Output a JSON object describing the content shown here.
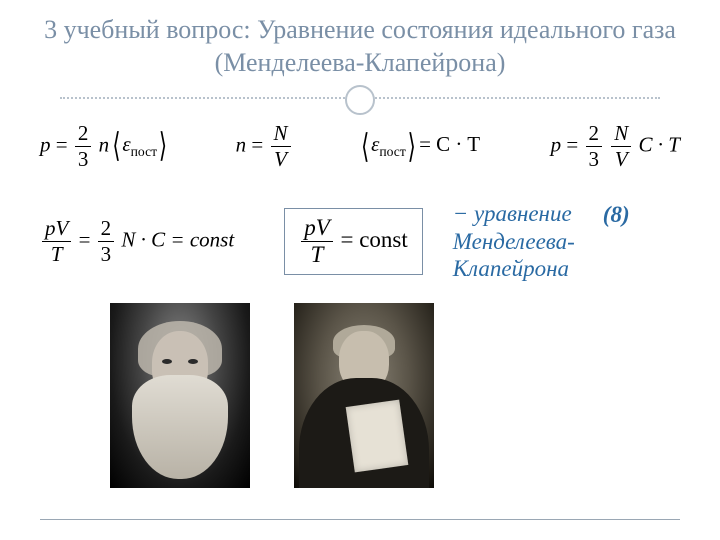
{
  "title": "3 учебный вопрос: Уравнение состояния идеального газа (Менделеева-Клапейрона)",
  "row1": {
    "eq1_lhs": "p",
    "eq1_frac_num": "2",
    "eq1_frac_den": "3",
    "eq1_n": "n",
    "eq1_eps": "ε",
    "eq1_eps_sub": "пост",
    "eq2_lhs": "n",
    "eq2_frac_num": "N",
    "eq2_frac_den": "V",
    "eq3_eps": "ε",
    "eq3_eps_sub": "пост",
    "eq3_rhs": "= C · T",
    "eq4_lhs": "p",
    "eq4_frac1_num": "2",
    "eq4_frac1_den": "3",
    "eq4_frac2_num": "N",
    "eq4_frac2_den": "V",
    "eq4_tail": "C · T"
  },
  "row2": {
    "left_frac_num": "pV",
    "left_frac_den": "T",
    "left_mid": "=",
    "left_frac2_num": "2",
    "left_frac2_den": "3",
    "left_tail": "N · C = const",
    "box_frac_num": "pV",
    "box_frac_den": "T",
    "box_tail": "= const"
  },
  "annotation_l1": "− уравнение",
  "annotation_l2": "Менделеева-",
  "annotation_l3": "Клапейрона",
  "eq_number": "(8)",
  "portraits": {
    "left": "Mendeleev",
    "right": "Clapeyron"
  },
  "colors": {
    "title": "#7a8fa6",
    "annotation": "#2a6aa3",
    "divider": "#b8c2cc",
    "footer": "#9aa7b4"
  }
}
